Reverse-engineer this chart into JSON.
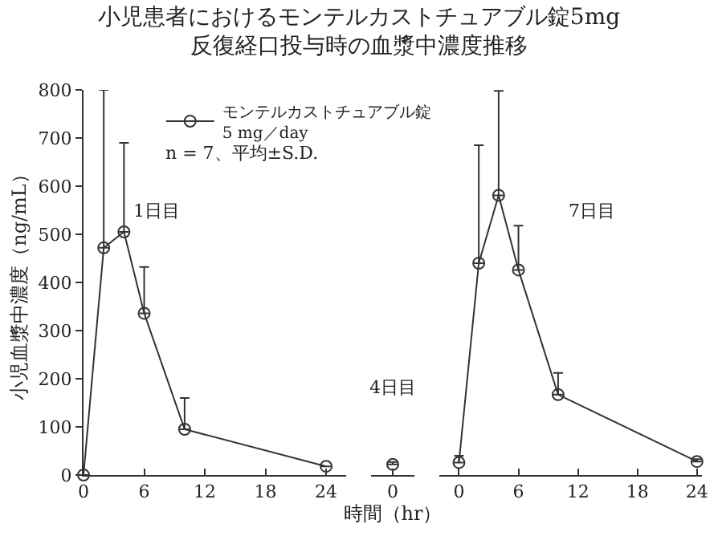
{
  "chart_data": [
    {
      "type": "line",
      "title": "小児患者におけるモンテルカストチュアブル錠5mg\n反復経口投与時の血漿中濃度推移",
      "ylabel": "小児血漿中濃度（ng/mL）",
      "annotations": [
        "n = 7、平均±S.D.",
        "1日目"
      ],
      "legend": "top right",
      "marker": "circle",
      "xlim": [
        0,
        26
      ],
      "xticks": [
        0,
        6,
        12,
        18,
        24
      ],
      "ylim": [
        0,
        800
      ],
      "yticks": [
        0,
        100,
        200,
        300,
        400,
        500,
        600,
        700,
        800
      ],
      "series": [
        {
          "name": "モンテルカストチュアブル錠\n5 mg／day",
          "color": "#333333",
          "x": [
            0,
            2,
            4,
            6,
            10,
            24
          ],
          "values": [
            0,
            472,
            505,
            336,
            95,
            18
          ],
          "errors": [
            null,
            [
              472,
              800
            ],
            [
              505,
              690
            ],
            [
              336,
              432
            ],
            [
              95,
              160
            ],
            null
          ]
        }
      ]
    },
    {
      "type": "line",
      "xlabel": "時間（hr）",
      "annotations": [
        "4日目"
      ],
      "marker": "circle",
      "tick_labels": "x",
      "categories": [
        "0"
      ],
      "ylim": [
        0,
        800
      ],
      "series": [
        {
          "color": "#333333",
          "values": [
            22
          ],
          "errors": [
            [
              22,
              27
            ]
          ]
        }
      ]
    },
    {
      "type": "line",
      "annotations": [
        "7日目"
      ],
      "marker": "circle",
      "tick_labels": "x",
      "xlim": [
        -2,
        24.5
      ],
      "xticks": [
        0,
        6,
        12,
        18,
        24
      ],
      "ylim": [
        0,
        800
      ],
      "series": [
        {
          "color": "#333333",
          "x": [
            0,
            2,
            4,
            6,
            10,
            24
          ],
          "values": [
            26,
            440,
            581,
            426,
            167,
            28
          ],
          "errors": [
            [
              26,
              40
            ],
            [
              440,
              685
            ],
            [
              581,
              798
            ],
            [
              426,
              518
            ],
            [
              167,
              212
            ],
            [
              28,
              33
            ]
          ]
        }
      ]
    }
  ]
}
